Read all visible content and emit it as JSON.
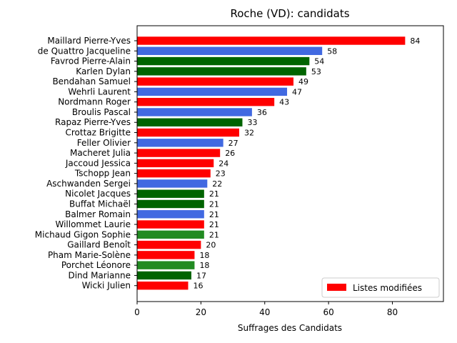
{
  "chart_data": {
    "type": "bar",
    "orientation": "horizontal",
    "title": "Roche (VD): candidats",
    "xlabel": "Suffrages des Candidats",
    "ylabel": "",
    "xlim": [
      0,
      96
    ],
    "xticks": [
      0,
      20,
      40,
      60,
      80
    ],
    "grid": false,
    "legend": {
      "label": "Listes modifiées",
      "color": "#ff0000",
      "placement": "lower-right"
    },
    "categories": [
      "Maillard Pierre-Yves",
      "de Quattro Jacqueline",
      "Favrod Pierre-Alain",
      "Karlen Dylan",
      "Bendahan Samuel",
      "Wehrli Laurent",
      "Nordmann Roger",
      "Broulis Pascal",
      "Rapaz Pierre-Yves",
      "Crottaz Brigitte",
      "Feller Olivier",
      "Macheret Julia",
      "Jaccoud Jessica",
      "Tschopp Jean",
      "Aschwanden Sergei",
      "Nicolet Jacques",
      "Buffat Michaël",
      "Balmer Romain",
      "Willommet Laurie",
      "Michaud Gigon Sophie",
      "Gaillard Benoît",
      "Pham Marie-Solène",
      "Porchet Léonore",
      "Dind Marianne",
      "Wicki Julien"
    ],
    "values": [
      84,
      58,
      54,
      53,
      49,
      47,
      43,
      36,
      33,
      32,
      27,
      26,
      24,
      23,
      22,
      21,
      21,
      21,
      21,
      21,
      20,
      18,
      18,
      17,
      16
    ],
    "colors": [
      "#ff0000",
      "#4169e1",
      "#006400",
      "#006400",
      "#ff0000",
      "#4169e1",
      "#ff0000",
      "#4169e1",
      "#006400",
      "#ff0000",
      "#4169e1",
      "#ff0000",
      "#ff0000",
      "#ff0000",
      "#4169e1",
      "#006400",
      "#006400",
      "#4169e1",
      "#ff0000",
      "#228b22",
      "#ff0000",
      "#ff0000",
      "#228b22",
      "#006400",
      "#ff0000"
    ]
  }
}
